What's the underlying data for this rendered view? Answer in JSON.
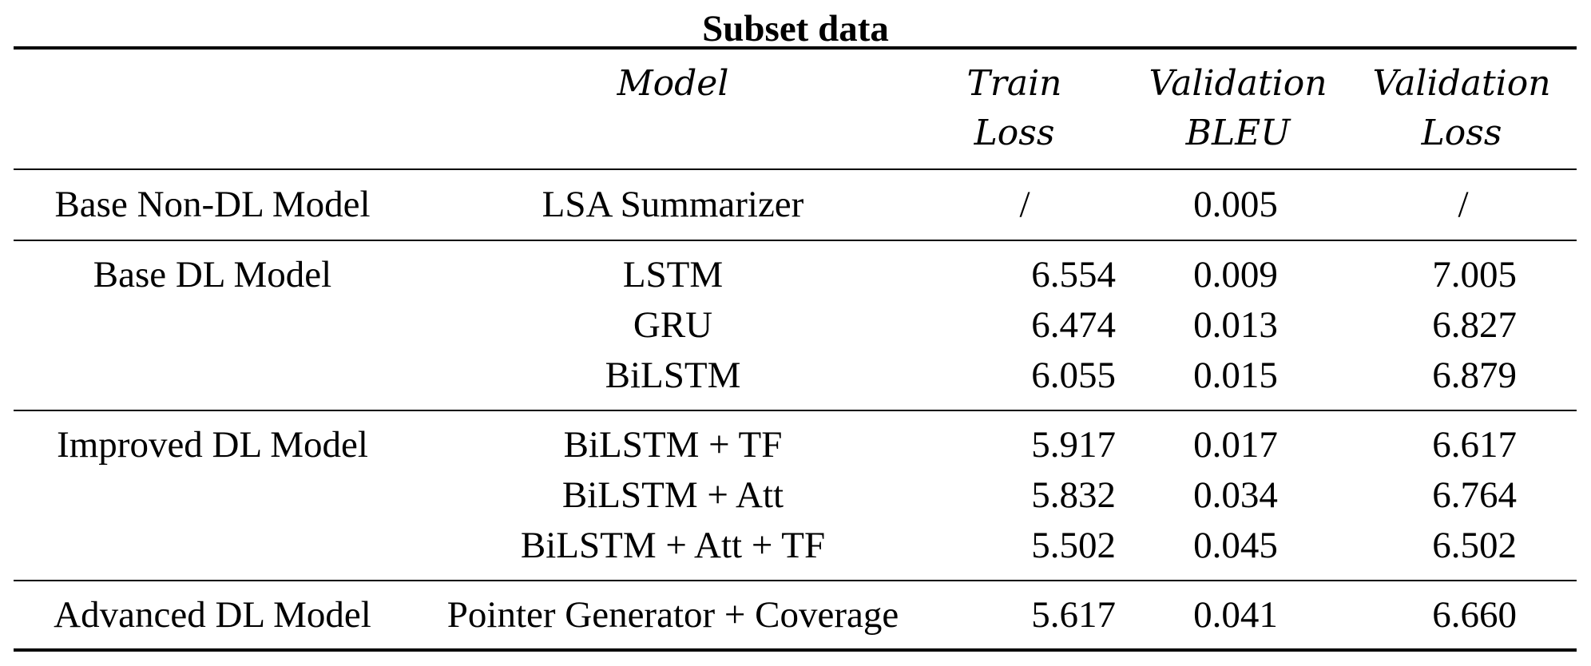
{
  "title": "Subset data",
  "header": {
    "group": "",
    "model": "Model",
    "train_loss": [
      "Train",
      "Loss"
    ],
    "validation_bleu": [
      "Validation",
      "BLEU"
    ],
    "validation_loss": [
      "Validation",
      "Loss"
    ]
  },
  "rows": [
    {
      "group": "Base Non-DL Model",
      "model": "LSA Summarizer",
      "train_loss": "/",
      "validation_bleu": "0.005",
      "validation_loss": "/"
    },
    {
      "group": "Base DL Model",
      "model": "LSTM",
      "train_loss": "6.554",
      "validation_bleu": "0.009",
      "validation_loss": "7.005"
    },
    {
      "group": "",
      "model": "GRU",
      "train_loss": "6.474",
      "validation_bleu": "0.013",
      "validation_loss": "6.827"
    },
    {
      "group": "",
      "model": "BiLSTM",
      "train_loss": "6.055",
      "validation_bleu": "0.015",
      "validation_loss": "6.879"
    },
    {
      "group": "Improved DL Model",
      "model": "BiLSTM + TF",
      "train_loss": "5.917",
      "validation_bleu": "0.017",
      "validation_loss": "6.617"
    },
    {
      "group": "",
      "model": "BiLSTM + Att",
      "train_loss": "5.832",
      "validation_bleu": "0.034",
      "validation_loss": "6.764"
    },
    {
      "group": "",
      "model": "BiLSTM + Att + TF",
      "train_loss": "5.502",
      "validation_bleu": "0.045",
      "validation_loss": "6.502"
    },
    {
      "group": "Advanced DL Model",
      "model": "Pointer Generator + Coverage",
      "train_loss": "5.617",
      "validation_bleu": "0.041",
      "validation_loss": "6.660"
    }
  ]
}
